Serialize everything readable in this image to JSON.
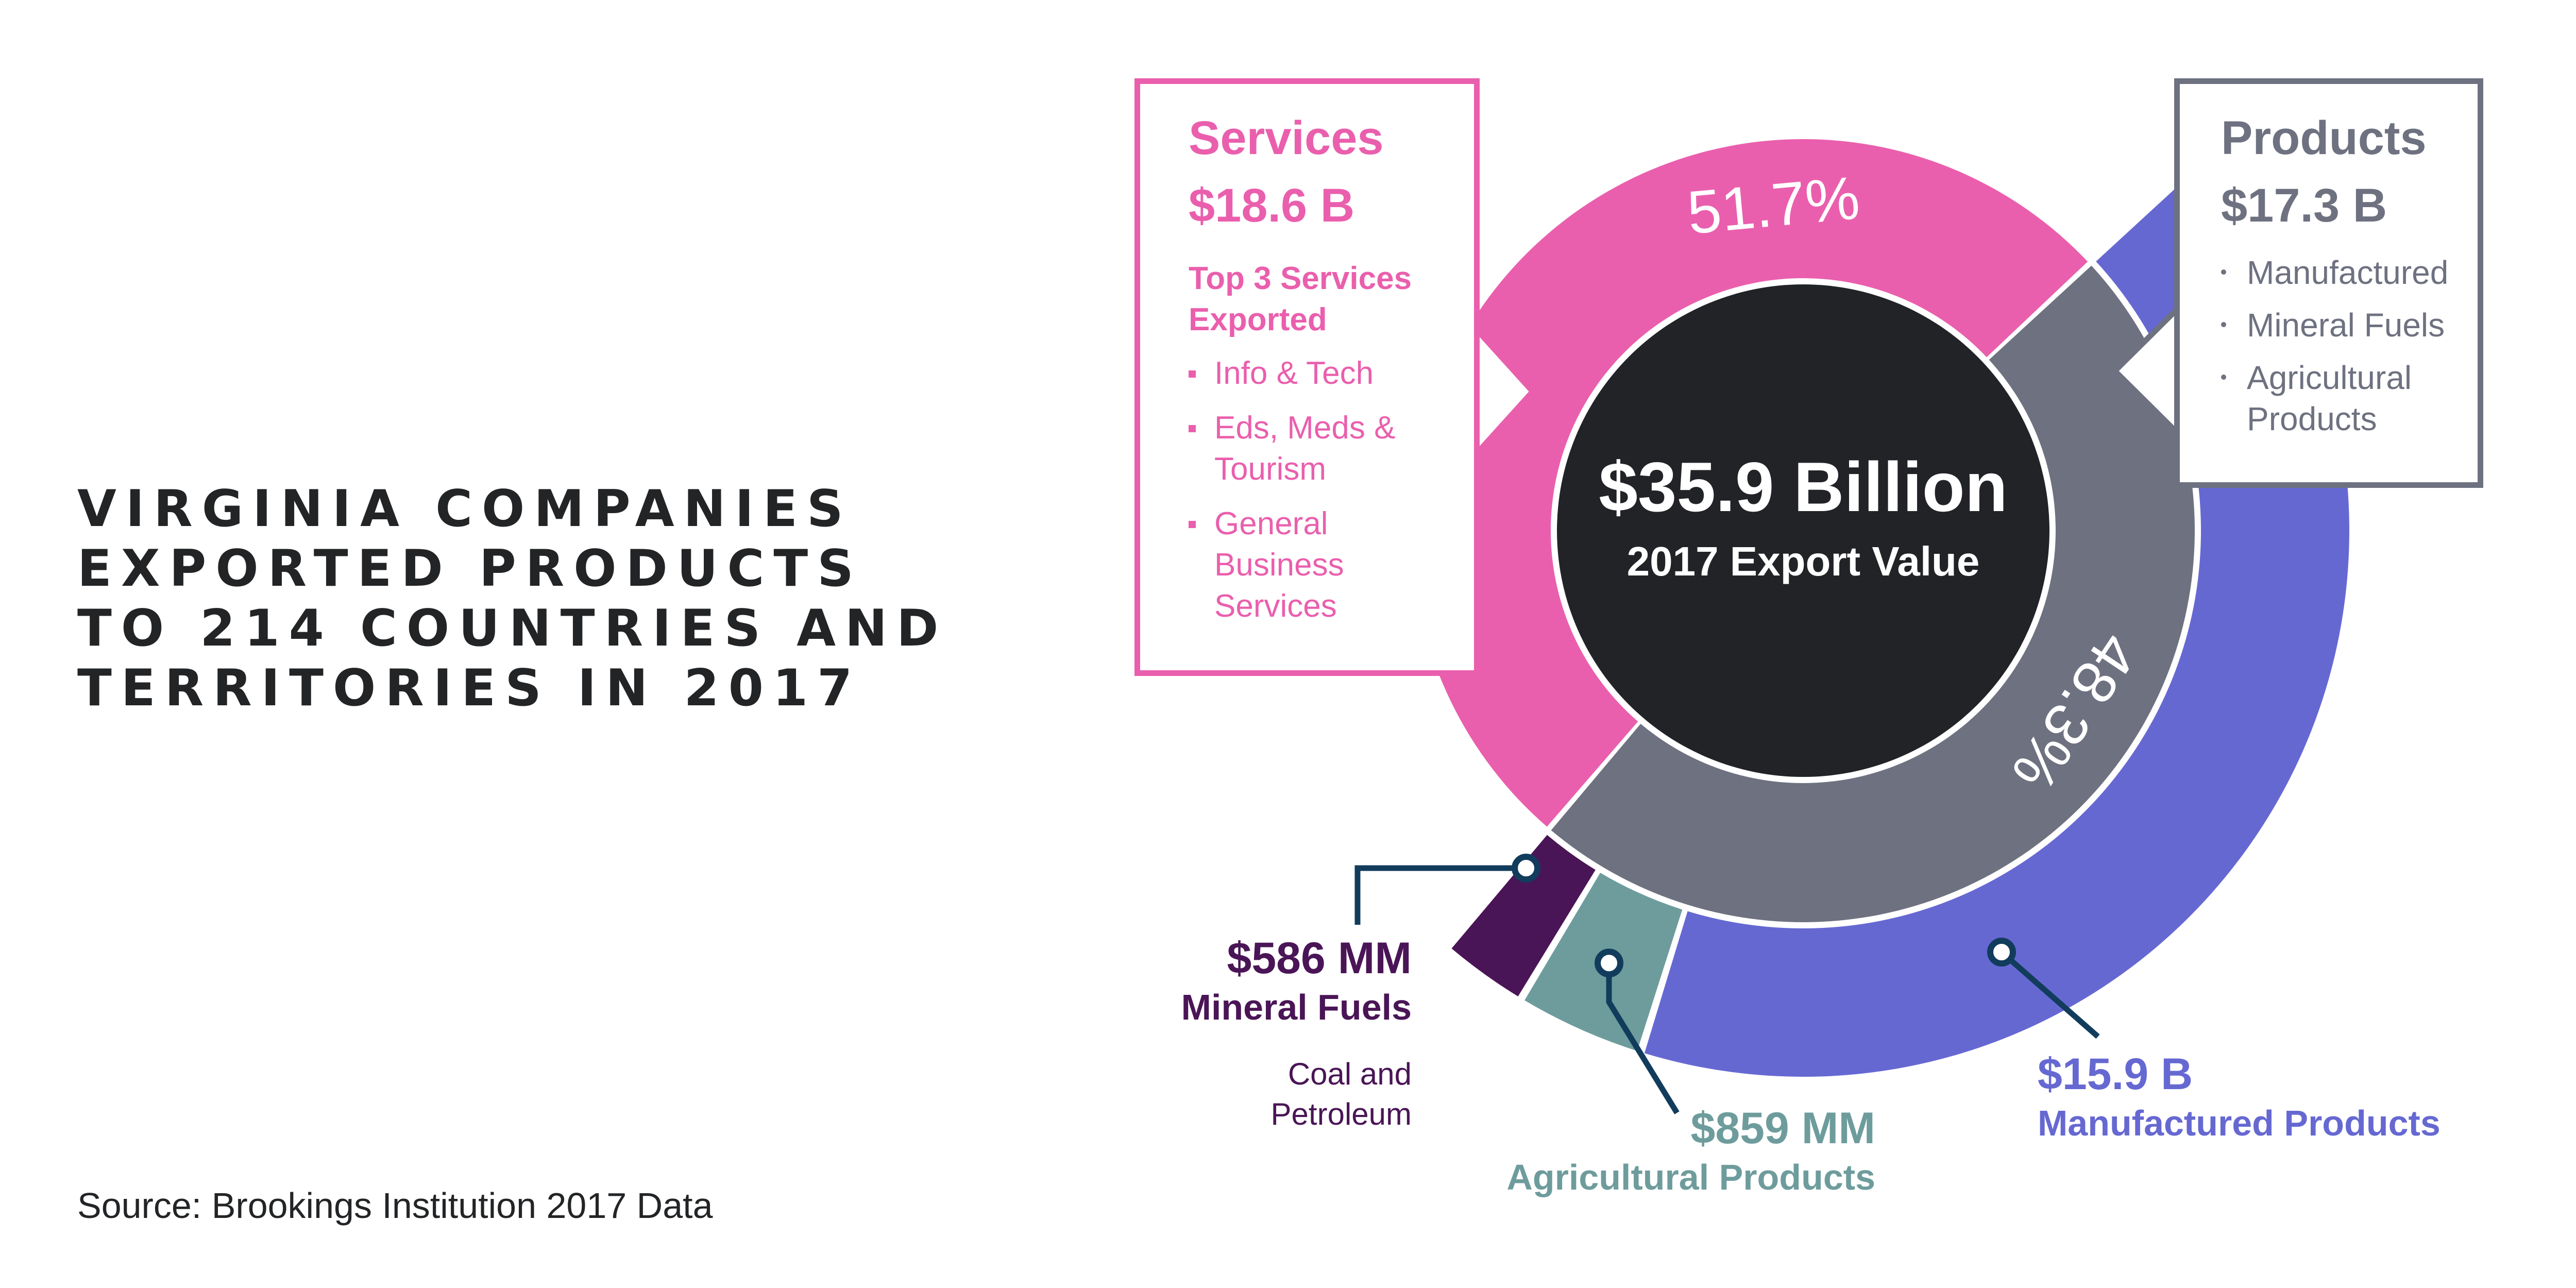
{
  "headline": [
    "VIRGINIA COMPANIES",
    "EXPORTED PRODUCTS",
    "TO 214 COUNTRIES AND",
    "TERRITORIES IN 2017"
  ],
  "source": "Source: Brookings Institution 2017 Data",
  "center": {
    "value": "$35.9 Billion",
    "label": "2017 Export Value"
  },
  "services_callout": {
    "title": "Services",
    "value": "$18.6 B",
    "subtitle": "Top 3 Services Exported",
    "items": [
      "Info & Tech",
      "Eds, Meds & Tourism",
      "General Business Services"
    ]
  },
  "products_callout": {
    "title": "Products",
    "value": "$17.3 B",
    "items": [
      "Manufactured",
      "Mineral Fuels",
      "Agricultural Products"
    ]
  },
  "labels": {
    "mineral": {
      "value": "$586 MM",
      "name": "Mineral Fuels",
      "desc": [
        "Coal and",
        "Petroleum"
      ]
    },
    "agri": {
      "value": "$859 MM",
      "name": "Agricultural Products"
    },
    "manu": {
      "value": "$15.9 B",
      "name": "Manufactured Products"
    }
  },
  "colors": {
    "services": "#ea5fad",
    "products": "#6e7180",
    "manufactured": "#6668d2",
    "agricultural": "#6e9c9c",
    "mineral": "#4a1556",
    "center": "#212326",
    "leader": "#123c5c"
  },
  "chart_data": {
    "type": "pie",
    "inner_ring": [
      {
        "name": "Services",
        "value": 18.6,
        "label": "51.7%"
      },
      {
        "name": "Products",
        "value": 17.3,
        "label": "48.3%"
      }
    ],
    "outer_ring": [
      {
        "name": "Manufactured Products",
        "value": 15.9
      },
      {
        "name": "Agricultural Products",
        "value": 0.859
      },
      {
        "name": "Mineral Fuels",
        "value": 0.586
      }
    ],
    "units": "USD billions",
    "total_label": "$35.9 Billion"
  }
}
